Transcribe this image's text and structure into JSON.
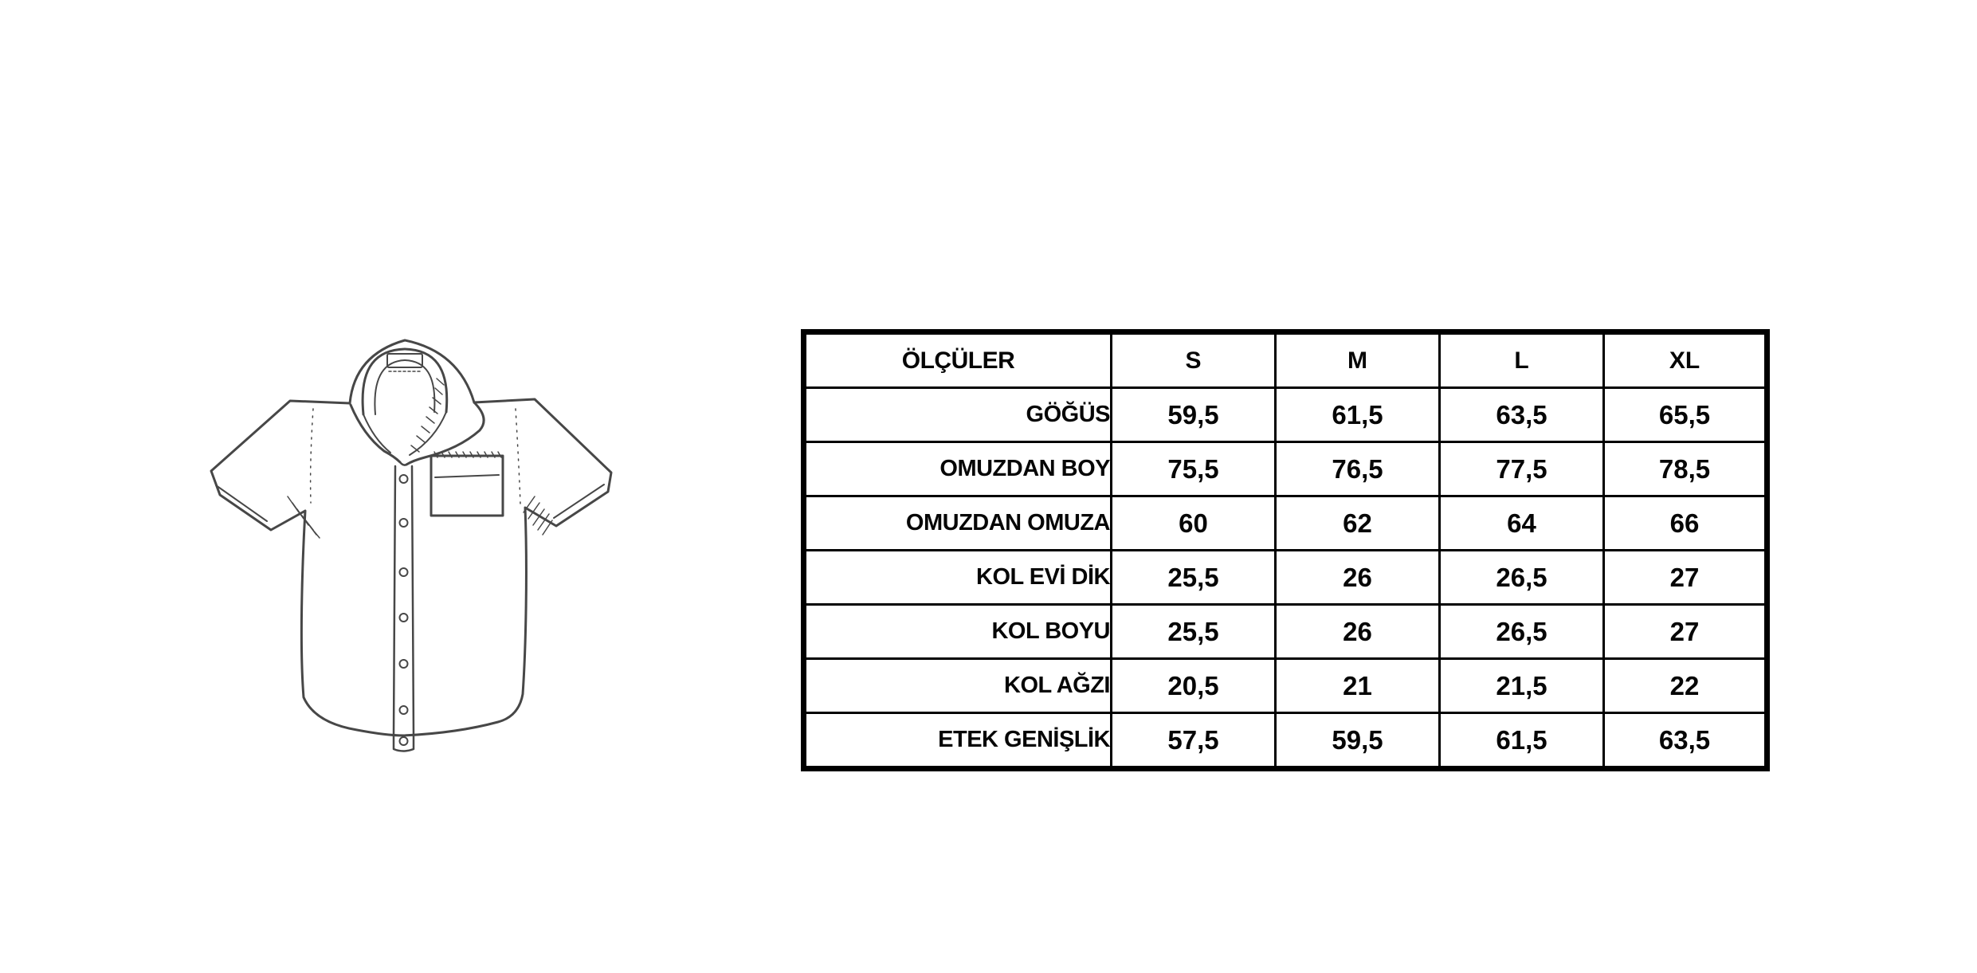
{
  "canvas": {
    "background_color": "#ffffff"
  },
  "shirt_illustration": {
    "description": "hand-drawn black and white line sketch of a short-sleeve button-up shirt with open collar, 7-button front placket and flapped chest pocket",
    "line_color": "#474747"
  },
  "size_table": {
    "header": [
      "ÖLÇÜLER",
      "S",
      "M",
      "L",
      "XL"
    ],
    "rows": [
      {
        "label": "GÖĞÜS",
        "values": [
          "59,5",
          "61,5",
          "63,5",
          "65,5"
        ]
      },
      {
        "label": "OMUZDAN BOY",
        "values": [
          "75,5",
          "76,5",
          "77,5",
          "78,5"
        ]
      },
      {
        "label": "OMUZDAN OMUZA",
        "values": [
          "60",
          "62",
          "64",
          "66"
        ]
      },
      {
        "label": "KOL EVİ DİK",
        "values": [
          "25,5",
          "26",
          "26,5",
          "27"
        ]
      },
      {
        "label": "KOL BOYU",
        "values": [
          "25,5",
          "26",
          "26,5",
          "27"
        ]
      },
      {
        "label": "KOL AĞZI",
        "values": [
          "20,5",
          "21",
          "21,5",
          "22"
        ]
      },
      {
        "label": "ETEK GENİŞLİK",
        "values": [
          "57,5",
          "59,5",
          "61,5",
          "63,5"
        ]
      }
    ],
    "border_color": "#000000",
    "text_color": "#060606",
    "background_color": "#ffffff"
  },
  "chart_data": {
    "type": "table",
    "title": "",
    "columns": [
      "ÖLÇÜLER",
      "S",
      "M",
      "L",
      "XL"
    ],
    "rows": [
      [
        "GÖĞÜS",
        "59,5",
        "61,5",
        "63,5",
        "65,5"
      ],
      [
        "OMUZDAN BOY",
        "75,5",
        "76,5",
        "77,5",
        "78,5"
      ],
      [
        "OMUZDAN OMUZA",
        "60",
        "62",
        "64",
        "66"
      ],
      [
        "KOL EVİ DİK",
        "25,5",
        "26",
        "26,5",
        "27"
      ],
      [
        "KOL BOYU",
        "25,5",
        "26",
        "26,5",
        "27"
      ],
      [
        "KOL AĞZI",
        "20,5",
        "21",
        "21,5",
        "22"
      ],
      [
        "ETEK GENİŞLİK",
        "57,5",
        "59,5",
        "61,5",
        "63,5"
      ]
    ],
    "numeric_series": [
      {
        "name": "GÖĞÜS",
        "values": [
          59.5,
          61.5,
          63.5,
          65.5
        ]
      },
      {
        "name": "OMUZDAN BOY",
        "values": [
          75.5,
          76.5,
          77.5,
          78.5
        ]
      },
      {
        "name": "OMUZDAN OMUZA",
        "values": [
          60,
          62,
          64,
          66
        ]
      },
      {
        "name": "KOL EVİ DİK",
        "values": [
          25.5,
          26,
          26.5,
          27
        ]
      },
      {
        "name": "KOL BOYU",
        "values": [
          25.5,
          26,
          26.5,
          27
        ]
      },
      {
        "name": "KOL AĞZI",
        "values": [
          20.5,
          21,
          21.5,
          22
        ]
      },
      {
        "name": "ETEK GENİŞLİK",
        "values": [
          57.5,
          59.5,
          61.5,
          63.5
        ]
      }
    ],
    "layout_hints": {
      "header_alignment": "center",
      "label_column_alignment": "right",
      "value_alignment": "center",
      "outer_border": "thick",
      "inner_border": "thin",
      "grid": "on"
    }
  }
}
